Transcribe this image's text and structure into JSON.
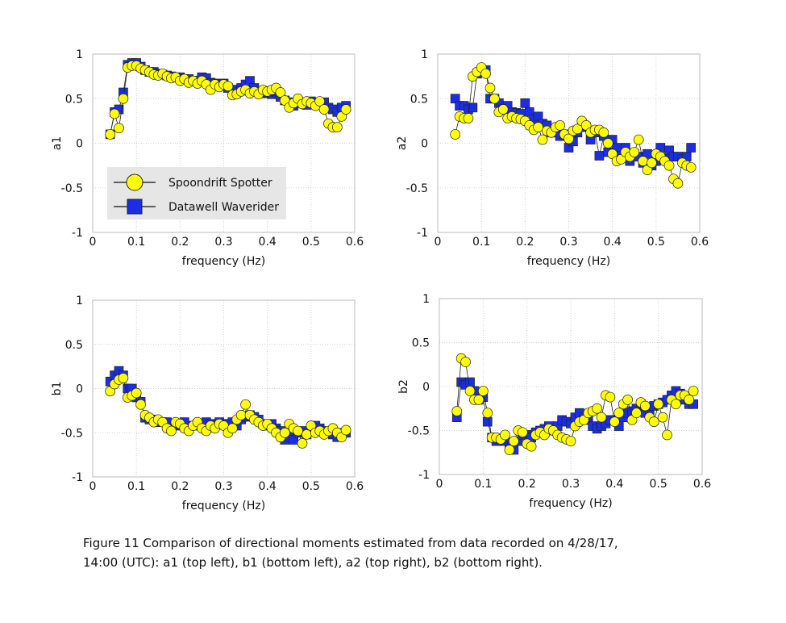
{
  "chart_data": [
    {
      "type": "line",
      "ylabel": "a1",
      "xlabel": "frequency (Hz)",
      "legend": "lower left",
      "grid": true,
      "xlim": [
        0,
        0.6
      ],
      "xticks": [
        0,
        0.1,
        0.2,
        0.3,
        0.4,
        0.5,
        0.6
      ],
      "ylim": [
        -1,
        1
      ],
      "yticks": [
        -1,
        -0.5,
        0,
        0.5,
        1
      ],
      "x": [
        0.04,
        0.05,
        0.06,
        0.07,
        0.08,
        0.09,
        0.1,
        0.11,
        0.12,
        0.13,
        0.14,
        0.15,
        0.16,
        0.17,
        0.18,
        0.19,
        0.2,
        0.21,
        0.22,
        0.23,
        0.24,
        0.25,
        0.26,
        0.27,
        0.28,
        0.29,
        0.3,
        0.31,
        0.32,
        0.33,
        0.34,
        0.35,
        0.36,
        0.37,
        0.38,
        0.39,
        0.4,
        0.41,
        0.42,
        0.43,
        0.44,
        0.45,
        0.46,
        0.47,
        0.48,
        0.49,
        0.5,
        0.51,
        0.52,
        0.53,
        0.54,
        0.55,
        0.56,
        0.57,
        0.58
      ],
      "series": [
        {
          "name": "Spoondrift Spotter",
          "color": "#ffff00",
          "marker": "circle",
          "values": [
            0.1,
            0.33,
            0.17,
            0.5,
            0.85,
            0.87,
            0.87,
            0.84,
            0.82,
            0.8,
            0.77,
            0.76,
            0.78,
            0.75,
            0.73,
            0.74,
            0.7,
            0.72,
            0.68,
            0.7,
            0.67,
            0.7,
            0.66,
            0.6,
            0.66,
            0.63,
            0.66,
            0.64,
            0.54,
            0.55,
            0.58,
            0.6,
            0.56,
            0.58,
            0.55,
            0.6,
            0.58,
            0.6,
            0.62,
            0.57,
            0.48,
            0.4,
            0.45,
            0.5,
            0.44,
            0.47,
            0.45,
            0.42,
            0.47,
            0.38,
            0.22,
            0.18,
            0.18,
            0.3,
            0.38
          ]
        },
        {
          "name": "Datawell Waverider",
          "color": "#1a2ee6",
          "marker": "square",
          "values": [
            0.1,
            0.35,
            0.38,
            0.57,
            0.88,
            0.9,
            0.9,
            0.86,
            0.82,
            0.8,
            0.8,
            0.78,
            0.77,
            0.76,
            0.75,
            0.74,
            0.74,
            0.72,
            0.72,
            0.7,
            0.7,
            0.74,
            0.73,
            0.68,
            0.67,
            0.64,
            0.67,
            0.62,
            0.6,
            0.6,
            0.62,
            0.66,
            0.7,
            0.62,
            0.58,
            0.56,
            0.58,
            0.55,
            0.58,
            0.52,
            0.48,
            0.46,
            0.42,
            0.45,
            0.45,
            0.43,
            0.47,
            0.45,
            0.44,
            0.46,
            0.4,
            0.38,
            0.35,
            0.4,
            0.42
          ]
        }
      ]
    },
    {
      "type": "line",
      "ylabel": "a2",
      "xlabel": "frequency (Hz)",
      "grid": true,
      "xlim": [
        0,
        0.6
      ],
      "xticks": [
        0,
        0.1,
        0.2,
        0.3,
        0.4,
        0.5,
        0.6
      ],
      "ylim": [
        -1,
        1
      ],
      "yticks": [
        -1,
        -0.5,
        0,
        0.5,
        1
      ],
      "x": [
        0.04,
        0.05,
        0.06,
        0.07,
        0.08,
        0.09,
        0.1,
        0.11,
        0.12,
        0.13,
        0.14,
        0.15,
        0.16,
        0.17,
        0.18,
        0.19,
        0.2,
        0.21,
        0.22,
        0.23,
        0.24,
        0.25,
        0.26,
        0.27,
        0.28,
        0.29,
        0.3,
        0.31,
        0.32,
        0.33,
        0.34,
        0.35,
        0.36,
        0.37,
        0.38,
        0.39,
        0.4,
        0.41,
        0.42,
        0.43,
        0.44,
        0.45,
        0.46,
        0.47,
        0.48,
        0.49,
        0.5,
        0.51,
        0.52,
        0.53,
        0.54,
        0.55,
        0.56,
        0.57,
        0.58
      ],
      "series": [
        {
          "color": "#ffff00",
          "marker": "circle",
          "values": [
            0.1,
            0.3,
            0.28,
            0.28,
            0.75,
            0.8,
            0.85,
            0.78,
            0.62,
            0.5,
            0.35,
            0.38,
            0.28,
            0.3,
            0.28,
            0.27,
            0.25,
            0.2,
            0.15,
            0.18,
            0.04,
            0.14,
            0.12,
            0.18,
            0.2,
            0.1,
            0.05,
            0.14,
            0.16,
            0.25,
            0.2,
            0.12,
            0.15,
            0.15,
            0.12,
            0,
            -0.12,
            -0.2,
            -0.18,
            -0.1,
            -0.15,
            -0.1,
            0.04,
            -0.2,
            -0.3,
            -0.22,
            -0.12,
            -0.15,
            -0.2,
            -0.25,
            -0.4,
            -0.45,
            -0.22,
            -0.25,
            -0.27
          ]
        },
        {
          "color": "#1a2ee6",
          "marker": "square",
          "values": [
            0.5,
            0.42,
            0.42,
            0.38,
            0.4,
            0.78,
            0.82,
            0.82,
            0.5,
            0.5,
            0.45,
            0.38,
            0.42,
            0.35,
            0.34,
            0.33,
            0.45,
            0.35,
            0.27,
            0.3,
            0.22,
            0.2,
            0.12,
            0.12,
            0.08,
            0.1,
            -0.05,
            0.02,
            0.12,
            0.2,
            0.18,
            0.04,
            0.12,
            -0.14,
            0.08,
            -0.1,
            0.04,
            -0.05,
            -0.14,
            -0.05,
            -0.2,
            -0.12,
            -0.15,
            -0.22,
            -0.12,
            -0.25,
            -0.2,
            -0.05,
            -0.18,
            -0.08,
            -0.15,
            -0.15,
            -0.18,
            -0.15,
            -0.05
          ]
        }
      ]
    },
    {
      "type": "line",
      "ylabel": "b1",
      "xlabel": "frequency (Hz)",
      "grid": true,
      "xlim": [
        0,
        0.6
      ],
      "xticks": [
        0,
        0.1,
        0.2,
        0.3,
        0.4,
        0.5,
        0.6
      ],
      "ylim": [
        -1,
        1
      ],
      "yticks": [
        -1,
        -0.5,
        0,
        0.5,
        1
      ],
      "x": [
        0.04,
        0.05,
        0.06,
        0.07,
        0.08,
        0.09,
        0.1,
        0.11,
        0.12,
        0.13,
        0.14,
        0.15,
        0.16,
        0.17,
        0.18,
        0.19,
        0.2,
        0.21,
        0.22,
        0.23,
        0.24,
        0.25,
        0.26,
        0.27,
        0.28,
        0.29,
        0.3,
        0.31,
        0.32,
        0.33,
        0.34,
        0.35,
        0.36,
        0.37,
        0.38,
        0.39,
        0.4,
        0.41,
        0.42,
        0.43,
        0.44,
        0.45,
        0.46,
        0.47,
        0.48,
        0.49,
        0.5,
        0.51,
        0.52,
        0.53,
        0.54,
        0.55,
        0.56,
        0.57,
        0.58
      ],
      "series": [
        {
          "color": "#ffff00",
          "marker": "circle",
          "values": [
            -0.03,
            0.05,
            0.1,
            0.12,
            -0.1,
            -0.08,
            -0.05,
            -0.18,
            -0.3,
            -0.33,
            -0.38,
            -0.35,
            -0.38,
            -0.45,
            -0.48,
            -0.38,
            -0.4,
            -0.45,
            -0.48,
            -0.42,
            -0.38,
            -0.45,
            -0.48,
            -0.42,
            -0.45,
            -0.4,
            -0.42,
            -0.5,
            -0.45,
            -0.35,
            -0.3,
            -0.18,
            -0.3,
            -0.35,
            -0.38,
            -0.42,
            -0.4,
            -0.45,
            -0.5,
            -0.55,
            -0.5,
            -0.4,
            -0.45,
            -0.48,
            -0.62,
            -0.52,
            -0.42,
            -0.5,
            -0.48,
            -0.52,
            -0.48,
            -0.45,
            -0.5,
            -0.55,
            -0.47
          ]
        },
        {
          "color": "#1a2ee6",
          "marker": "square",
          "values": [
            0.08,
            0.15,
            0.2,
            0.15,
            0,
            0,
            -0.1,
            -0.15,
            -0.33,
            -0.35,
            -0.35,
            -0.38,
            -0.38,
            -0.38,
            -0.45,
            -0.4,
            -0.42,
            -0.38,
            -0.45,
            -0.42,
            -0.4,
            -0.4,
            -0.38,
            -0.4,
            -0.42,
            -0.38,
            -0.4,
            -0.4,
            -0.38,
            -0.42,
            -0.35,
            -0.32,
            -0.3,
            -0.32,
            -0.35,
            -0.4,
            -0.42,
            -0.4,
            -0.45,
            -0.48,
            -0.58,
            -0.55,
            -0.58,
            -0.5,
            -0.48,
            -0.52,
            -0.45,
            -0.42,
            -0.45,
            -0.48,
            -0.5,
            -0.52,
            -0.55,
            -0.5,
            -0.5
          ]
        }
      ]
    },
    {
      "type": "line",
      "ylabel": "b2",
      "xlabel": "frequency (Hz)",
      "grid": true,
      "xlim": [
        0,
        0.6
      ],
      "xticks": [
        0,
        0.1,
        0.2,
        0.3,
        0.4,
        0.5,
        0.6
      ],
      "ylim": [
        -1,
        1
      ],
      "yticks": [
        -1,
        -0.5,
        0,
        0.5,
        1
      ],
      "x": [
        0.04,
        0.05,
        0.06,
        0.07,
        0.08,
        0.09,
        0.1,
        0.11,
        0.12,
        0.13,
        0.14,
        0.15,
        0.16,
        0.17,
        0.18,
        0.19,
        0.2,
        0.21,
        0.22,
        0.23,
        0.24,
        0.25,
        0.26,
        0.27,
        0.28,
        0.29,
        0.3,
        0.31,
        0.32,
        0.33,
        0.34,
        0.35,
        0.36,
        0.37,
        0.38,
        0.39,
        0.4,
        0.41,
        0.42,
        0.43,
        0.44,
        0.45,
        0.46,
        0.47,
        0.48,
        0.49,
        0.5,
        0.51,
        0.52,
        0.53,
        0.54,
        0.55,
        0.56,
        0.57,
        0.58
      ],
      "series": [
        {
          "color": "#ffff00",
          "marker": "circle",
          "values": [
            -0.28,
            0.32,
            0.28,
            -0.05,
            -0.15,
            -0.15,
            -0.05,
            -0.3,
            -0.58,
            -0.58,
            -0.6,
            -0.55,
            -0.72,
            -0.62,
            -0.5,
            -0.52,
            -0.65,
            -0.68,
            -0.55,
            -0.52,
            -0.55,
            -0.48,
            -0.5,
            -0.55,
            -0.58,
            -0.6,
            -0.62,
            -0.45,
            -0.4,
            -0.38,
            -0.3,
            -0.28,
            -0.25,
            -0.35,
            -0.1,
            -0.12,
            -0.4,
            -0.3,
            -0.2,
            -0.15,
            -0.38,
            -0.3,
            -0.18,
            -0.22,
            -0.35,
            -0.4,
            -0.2,
            -0.35,
            -0.55,
            -0.15,
            -0.2,
            -0.1,
            -0.1,
            -0.15,
            -0.05
          ]
        },
        {
          "color": "#1a2ee6",
          "marker": "square",
          "values": [
            -0.35,
            0.05,
            0.02,
            0.05,
            -0.05,
            -0.15,
            -0.12,
            -0.4,
            -0.58,
            -0.62,
            -0.6,
            -0.62,
            -0.68,
            -0.72,
            -0.62,
            -0.55,
            -0.55,
            -0.58,
            -0.52,
            -0.5,
            -0.48,
            -0.45,
            -0.5,
            -0.45,
            -0.38,
            -0.4,
            -0.42,
            -0.35,
            -0.3,
            -0.35,
            -0.38,
            -0.45,
            -0.48,
            -0.45,
            -0.42,
            -0.38,
            -0.38,
            -0.45,
            -0.35,
            -0.3,
            -0.28,
            -0.25,
            -0.2,
            -0.3,
            -0.28,
            -0.22,
            -0.2,
            -0.18,
            -0.15,
            -0.1,
            -0.05,
            -0.08,
            -0.15,
            -0.2,
            -0.2
          ]
        }
      ]
    }
  ],
  "caption": [
    "Figure 11 Comparison of directional moments estimated from data recorded on 4/28/17,",
    "14:00 (UTC): a1 (top left), b1 (bottom left), a2 (top right), b2 (bottom right)."
  ]
}
